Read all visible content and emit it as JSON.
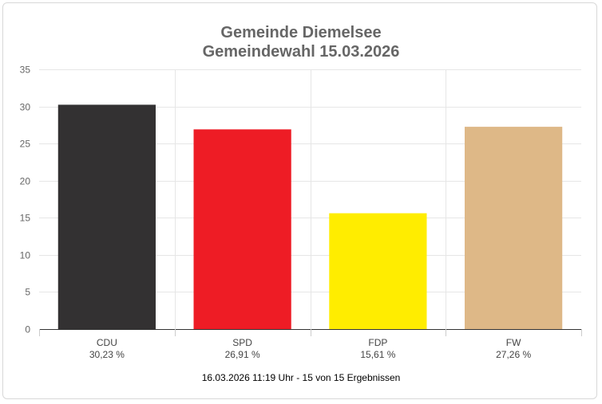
{
  "chart_data": {
    "type": "bar",
    "title": "Gemeinde Diemelsee",
    "subtitle": "Gemeindewahl 15.03.2026",
    "categories": [
      "CDU",
      "SPD",
      "FDP",
      "FW"
    ],
    "value_labels": [
      "30,23 %",
      "26,91 %",
      "15,61 %",
      "27,26 %"
    ],
    "values": [
      30.23,
      26.91,
      15.61,
      27.26
    ],
    "colors": [
      "#333132",
      "#ee1c25",
      "#ffed00",
      "#deb887"
    ],
    "ylim": [
      0,
      35
    ],
    "yticks": [
      0,
      5,
      10,
      15,
      20,
      25,
      30,
      35
    ],
    "grid": true,
    "footer": "16.03.2026 11:19 Uhr - 15 von 15 Ergebnissen"
  }
}
